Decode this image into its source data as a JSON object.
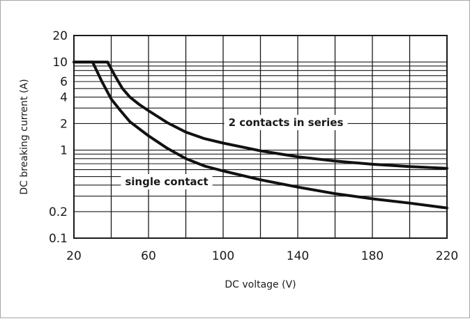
{
  "chart_data": {
    "type": "line",
    "title": "",
    "xlabel": "DC voltage (V)",
    "ylabel": "DC breaking current (A)",
    "xlim": [
      20,
      220
    ],
    "ylim": [
      0.1,
      20
    ],
    "yscale": "log",
    "grid": true,
    "x_ticks": [
      20,
      60,
      100,
      140,
      180,
      220
    ],
    "x_tick_labels": [
      "20",
      "60",
      "100",
      "140",
      "180",
      "220"
    ],
    "y_ticks": [
      20,
      10,
      6,
      4,
      2,
      1,
      0.2,
      0.1
    ],
    "y_tick_labels": [
      "20",
      "10",
      "6",
      "4",
      "2",
      "1",
      "0.2",
      "0.1"
    ],
    "series": [
      {
        "name": "single contact",
        "x": [
          20,
          30,
          35,
          40,
          45,
          50,
          60,
          70,
          80,
          90,
          100,
          120,
          140,
          160,
          180,
          200,
          220
        ],
        "y": [
          10,
          10,
          6.0,
          3.8,
          2.8,
          2.1,
          1.45,
          1.05,
          0.8,
          0.66,
          0.58,
          0.46,
          0.38,
          0.32,
          0.28,
          0.25,
          0.22
        ]
      },
      {
        "name": "2 contacts in series",
        "x": [
          20,
          38,
          42,
          46,
          50,
          55,
          60,
          70,
          80,
          90,
          100,
          120,
          140,
          160,
          180,
          200,
          220
        ],
        "y": [
          10,
          10,
          7.0,
          5.0,
          4.0,
          3.3,
          2.8,
          2.05,
          1.6,
          1.35,
          1.2,
          0.98,
          0.84,
          0.75,
          0.69,
          0.65,
          0.62
        ]
      }
    ],
    "annotations": [
      "2 contacts in series",
      "single contact"
    ]
  }
}
